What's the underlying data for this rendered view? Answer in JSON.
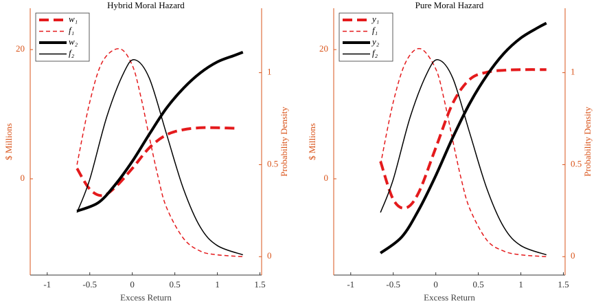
{
  "chart_data": [
    {
      "type": "line",
      "title": "Hybrid Moral Hazard",
      "xlabel": "Excess Return",
      "ylabel": "$ Millions",
      "y2label": "Probability Density",
      "xlim": [
        -1.2,
        1.52
      ],
      "xticks": [
        -1,
        -0.5,
        0,
        0.5,
        1,
        1.5
      ],
      "ylim": [
        -14.9,
        26.4
      ],
      "yticks": [
        0,
        20
      ],
      "y2lim": [
        -0.1,
        1.35
      ],
      "y2ticks": [
        0,
        0.5,
        1
      ],
      "series": [
        {
          "name": "w₁",
          "color": "#e41a1c",
          "dash": true,
          "width": 4,
          "axis": "y",
          "x": [
            -0.65,
            -0.5,
            -0.35,
            -0.2,
            0,
            0.2,
            0.4,
            0.6,
            0.8,
            1.0,
            1.25
          ],
          "values": [
            1.6,
            -1.6,
            -2.6,
            -1.3,
            1.6,
            4.8,
            6.8,
            7.6,
            7.9,
            7.9,
            7.8
          ]
        },
        {
          "name": "f₁",
          "color": "#e41a1c",
          "dash": true,
          "width": 1.5,
          "axis": "y2",
          "x": [
            -0.65,
            -0.5,
            -0.35,
            -0.15,
            0,
            0.1,
            0.2,
            0.3,
            0.4,
            0.6,
            0.8,
            1.0,
            1.3
          ],
          "values": [
            0.5,
            0.84,
            1.06,
            1.13,
            1.04,
            0.87,
            0.65,
            0.44,
            0.27,
            0.1,
            0.03,
            0.01,
            0
          ]
        },
        {
          "name": "w₂",
          "color": "#000000",
          "dash": false,
          "width": 4,
          "axis": "y",
          "x": [
            -0.65,
            -0.4,
            -0.2,
            0,
            0.2,
            0.4,
            0.6,
            0.8,
            1.0,
            1.2,
            1.3
          ],
          "values": [
            -5.0,
            -3.7,
            -0.9,
            2.7,
            6.9,
            10.9,
            14.0,
            16.4,
            18.1,
            19.1,
            19.6
          ]
        },
        {
          "name": "f₂",
          "color": "#000000",
          "dash": false,
          "width": 1.5,
          "axis": "y2",
          "x": [
            -0.65,
            -0.5,
            -0.3,
            -0.1,
            0.03,
            0.2,
            0.4,
            0.6,
            0.8,
            1.0,
            1.3
          ],
          "values": [
            0.24,
            0.42,
            0.76,
            1.0,
            1.07,
            0.97,
            0.67,
            0.37,
            0.16,
            0.06,
            0.01
          ]
        }
      ]
    },
    {
      "type": "line",
      "title": "Pure Moral Hazard",
      "xlabel": "Excess Return",
      "ylabel": "$ Millions",
      "y2label": "Probability Density",
      "xlim": [
        -1.2,
        1.52
      ],
      "xticks": [
        -1,
        -0.5,
        0,
        0.5,
        1,
        1.5
      ],
      "ylim": [
        -14.9,
        26.4
      ],
      "yticks": [
        0,
        20
      ],
      "y2lim": [
        -0.1,
        1.35
      ],
      "y2ticks": [
        0,
        0.5,
        1
      ],
      "series": [
        {
          "name": "y₁",
          "color": "#e41a1c",
          "dash": true,
          "width": 4,
          "axis": "y",
          "x": [
            -0.65,
            -0.5,
            -0.35,
            -0.2,
            0,
            0.2,
            0.4,
            0.6,
            0.8,
            1.0,
            1.3
          ],
          "values": [
            2.7,
            -3.2,
            -4.5,
            -2.1,
            4.8,
            11.7,
            15.4,
            16.5,
            16.8,
            16.9,
            16.9
          ]
        },
        {
          "name": "f₁",
          "color": "#e41a1c",
          "dash": true,
          "width": 1.5,
          "axis": "y2",
          "x": [
            -0.65,
            -0.5,
            -0.35,
            -0.18,
            0,
            0.1,
            0.2,
            0.3,
            0.4,
            0.6,
            0.8,
            1.0,
            1.3
          ],
          "values": [
            0.5,
            0.84,
            1.06,
            1.13,
            1.02,
            0.85,
            0.63,
            0.42,
            0.26,
            0.09,
            0.03,
            0.01,
            0
          ]
        },
        {
          "name": "y₂",
          "color": "#000000",
          "dash": false,
          "width": 4,
          "axis": "y",
          "x": [
            -0.65,
            -0.4,
            -0.2,
            0,
            0.2,
            0.4,
            0.6,
            0.8,
            1.0,
            1.2,
            1.3
          ],
          "values": [
            -11.5,
            -9.0,
            -4.8,
            0.5,
            6.4,
            11.7,
            16.0,
            19.4,
            21.8,
            23.4,
            24.1
          ]
        },
        {
          "name": "f₂",
          "color": "#000000",
          "dash": false,
          "width": 1.5,
          "axis": "y2",
          "x": [
            -0.65,
            -0.5,
            -0.3,
            -0.1,
            0.03,
            0.2,
            0.4,
            0.6,
            0.8,
            1.0,
            1.3
          ],
          "values": [
            0.24,
            0.42,
            0.76,
            1.0,
            1.07,
            0.97,
            0.67,
            0.37,
            0.16,
            0.06,
            0.01
          ]
        }
      ]
    }
  ]
}
